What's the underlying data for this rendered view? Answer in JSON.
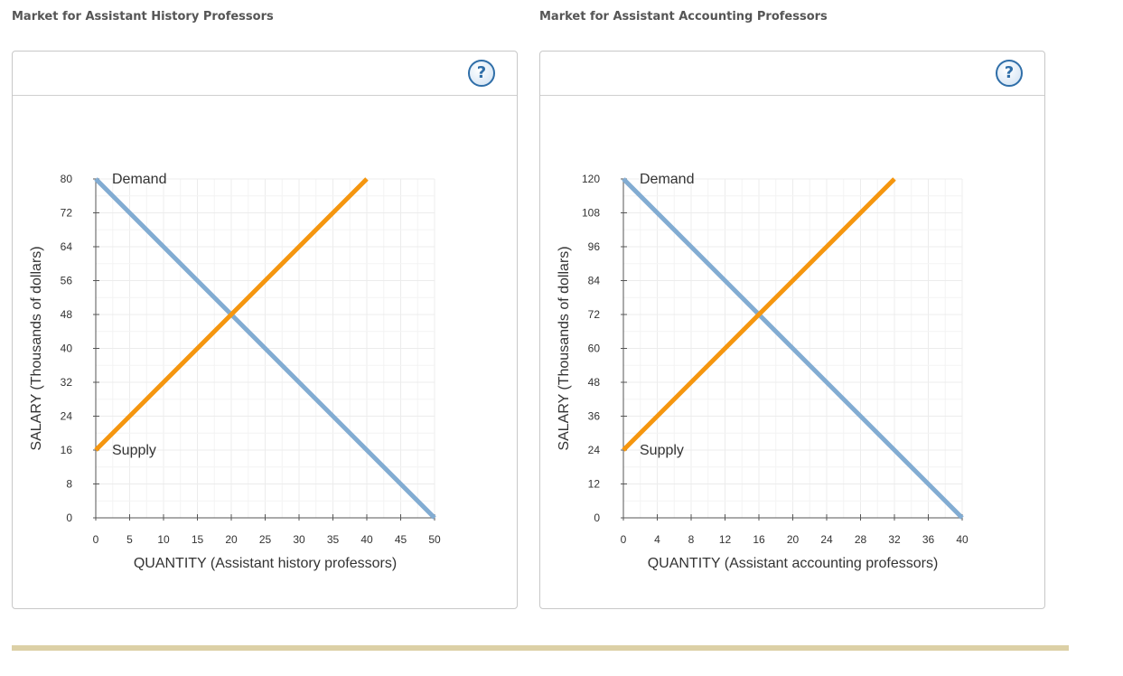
{
  "charts": [
    {
      "section_title": "Market for Assistant History Professors",
      "help_label": "?",
      "chart_data": {
        "type": "line",
        "xlabel": "QUANTITY (Assistant history professors)",
        "ylabel": "SALARY (Thousands of dollars)",
        "xlim": [
          0,
          50
        ],
        "ylim": [
          0,
          80
        ],
        "x_ticks": [
          0,
          5,
          10,
          15,
          20,
          25,
          30,
          35,
          40,
          45,
          50
        ],
        "y_ticks": [
          0,
          8,
          16,
          24,
          32,
          40,
          48,
          56,
          64,
          72,
          80
        ],
        "grid": true,
        "series": [
          {
            "name": "Demand",
            "color": "#82acd2",
            "points": [
              [
                0,
                80
              ],
              [
                50,
                0
              ]
            ]
          },
          {
            "name": "Supply",
            "color": "#f5960f",
            "points": [
              [
                0,
                16
              ],
              [
                40,
                80
              ]
            ]
          }
        ]
      }
    },
    {
      "section_title": "Market for Assistant Accounting Professors",
      "help_label": "?",
      "chart_data": {
        "type": "line",
        "xlabel": "QUANTITY (Assistant accounting professors)",
        "ylabel": "SALARY (Thousands of dollars)",
        "xlim": [
          0,
          40
        ],
        "ylim": [
          0,
          120
        ],
        "x_ticks": [
          0,
          4,
          8,
          12,
          16,
          20,
          24,
          28,
          32,
          36,
          40
        ],
        "y_ticks": [
          0,
          12,
          24,
          36,
          48,
          60,
          72,
          84,
          96,
          108,
          120
        ],
        "grid": true,
        "series": [
          {
            "name": "Demand",
            "color": "#82acd2",
            "points": [
              [
                0,
                120
              ],
              [
                40,
                0
              ]
            ]
          },
          {
            "name": "Supply",
            "color": "#f5960f",
            "points": [
              [
                0,
                24
              ],
              [
                32,
                120
              ]
            ]
          }
        ]
      }
    }
  ],
  "bottom_bar_color": "#dcd0a6"
}
